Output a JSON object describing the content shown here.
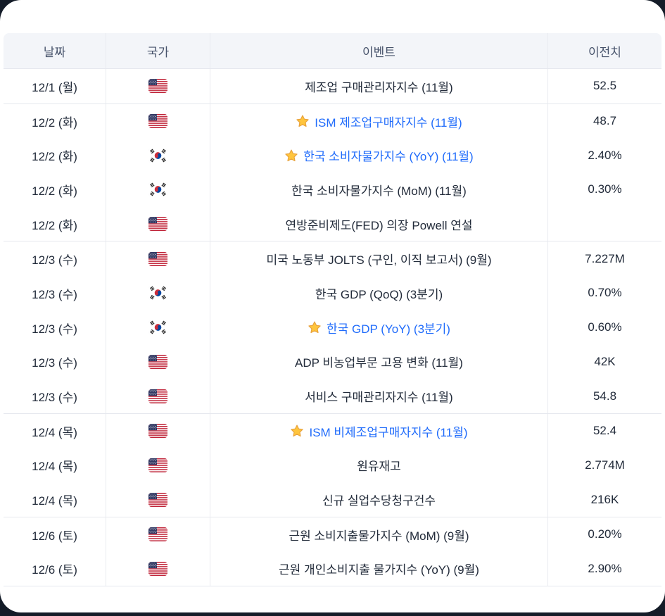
{
  "page": {
    "background_color": "#141c28",
    "card_color": "#ffffff",
    "accent_color": "#1f6bfb",
    "star_color": "#ffc53d"
  },
  "table": {
    "columns": [
      {
        "key": "date",
        "label": "날짜"
      },
      {
        "key": "country",
        "label": "국가"
      },
      {
        "key": "event",
        "label": "이벤트"
      },
      {
        "key": "previous",
        "label": "이전치"
      }
    ],
    "groups": [
      {
        "date": "12/1 (월)",
        "rows": [
          {
            "country": "US",
            "starred": false,
            "event": "제조업 구매관리자지수 (11월)",
            "previous": "52.5"
          }
        ]
      },
      {
        "date": "12/2 (화)",
        "rows": [
          {
            "country": "US",
            "starred": true,
            "event": "ISM 제조업구매자지수 (11월)",
            "previous": "48.7"
          },
          {
            "country": "KR",
            "starred": true,
            "event": "한국 소비자물가지수 (YoY) (11월)",
            "previous": "2.40%"
          },
          {
            "country": "KR",
            "starred": false,
            "event": "한국 소비자물가지수 (MoM) (11월)",
            "previous": "0.30%"
          },
          {
            "country": "US",
            "starred": false,
            "event": "연방준비제도(FED) 의장 Powell 연설",
            "previous": ""
          }
        ]
      },
      {
        "date": "12/3 (수)",
        "rows": [
          {
            "country": "US",
            "starred": false,
            "event": "미국 노동부 JOLTS (구인, 이직 보고서) (9월)",
            "previous": "7.227M"
          },
          {
            "country": "KR",
            "starred": false,
            "event": "한국 GDP (QoQ) (3분기)",
            "previous": "0.70%"
          },
          {
            "country": "KR",
            "starred": true,
            "event": "한국 GDP (YoY) (3분기)",
            "previous": "0.60%"
          },
          {
            "country": "US",
            "starred": false,
            "event": "ADP 비농업부문 고용 변화 (11월)",
            "previous": "42K"
          },
          {
            "country": "US",
            "starred": false,
            "event": "서비스 구매관리자지수 (11월)",
            "previous": "54.8"
          }
        ]
      },
      {
        "date": "12/4 (목)",
        "rows": [
          {
            "country": "US",
            "starred": true,
            "event": "ISM 비제조업구매자지수 (11월)",
            "previous": "52.4"
          },
          {
            "country": "US",
            "starred": false,
            "event": "원유재고",
            "previous": "2.774M"
          },
          {
            "country": "US",
            "starred": false,
            "event": "신규 실업수당청구건수",
            "previous": "216K"
          }
        ]
      },
      {
        "date": "12/6 (토)",
        "rows": [
          {
            "country": "US",
            "starred": false,
            "event": "근원 소비지출물가지수 (MoM) (9월)",
            "previous": "0.20%"
          },
          {
            "country": "US",
            "starred": false,
            "event": "근원 개인소비지출 물가지수 (YoY) (9월)",
            "previous": "2.90%"
          }
        ]
      }
    ]
  }
}
